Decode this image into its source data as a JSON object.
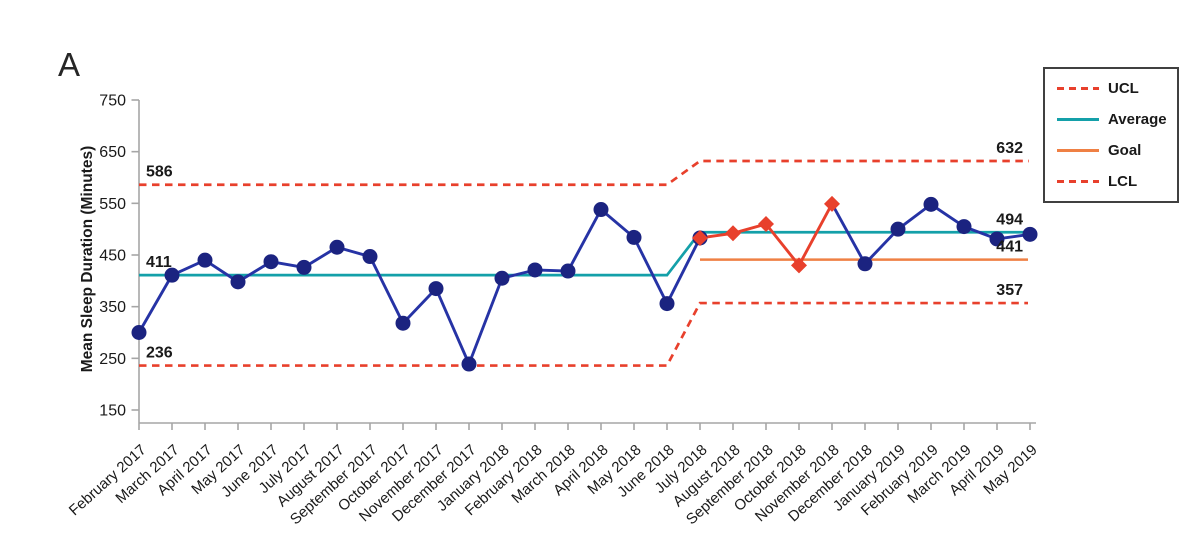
{
  "panel_label": "A",
  "legend": {
    "items": [
      {
        "label": "UCL",
        "style": "dashed",
        "color": "#e8402c"
      },
      {
        "label": "Average",
        "style": "solid",
        "color": "#14a0a9"
      },
      {
        "label": "Goal",
        "style": "solid",
        "color": "#ef8044"
      },
      {
        "label": "LCL",
        "style": "dashed",
        "color": "#e8402c"
      }
    ]
  },
  "colors": {
    "series_line": "#2633a5",
    "marker": "#1b2380",
    "special_cause": "#e8402c",
    "control_limit": "#e8402c",
    "average": "#14a0a9",
    "goal": "#ef8044",
    "axis": "#a6a6a6",
    "text": "#1a1a1a"
  },
  "chart_data": {
    "type": "line",
    "title": "",
    "xlabel": "",
    "ylabel": "Mean Sleep Duration (Minutes)",
    "ylim": [
      150,
      750
    ],
    "yticks": [
      150,
      250,
      350,
      450,
      550,
      650,
      750
    ],
    "grid": false,
    "legend_position": "outside-top-right",
    "x": [
      "February 2017",
      "March 2017",
      "April 2017",
      "May 2017",
      "June 2017",
      "July 2017",
      "August 2017",
      "September 2017",
      "October 2017",
      "November 2017",
      "December 2017",
      "January 2018",
      "February 2018",
      "March 2018",
      "April 2018",
      "May 2018",
      "June 2018",
      "July 2018",
      "August 2018",
      "September 2018",
      "October 2018",
      "November 2018",
      "December 2018",
      "January 2019",
      "February 2019",
      "March 2019",
      "April 2019",
      "May 2019"
    ],
    "series": [
      {
        "name": "Mean sleep duration",
        "marker": "circle",
        "values": [
          300,
          411,
          440,
          398,
          437,
          426,
          465,
          447,
          318,
          385,
          239,
          405,
          421,
          419,
          538,
          484,
          356,
          483,
          492,
          510,
          430,
          549,
          433,
          500,
          548,
          505,
          481,
          490
        ]
      }
    ],
    "special_cause_segment": {
      "note": "red line with diamond markers",
      "start_index": 17,
      "end_index": 21,
      "months": [
        "July 2018",
        "August 2018",
        "September 2018",
        "October 2018",
        "November 2018"
      ]
    },
    "control_limits": {
      "period1": {
        "from": "February 2017",
        "to": "June 2018",
        "ucl": 586,
        "average": 411,
        "lcl": 236
      },
      "period2": {
        "from": "July 2018",
        "to": "May 2019",
        "ucl": 632,
        "average": 494,
        "lcl": 357,
        "goal": 441
      },
      "transition_indices": [
        16,
        17
      ]
    },
    "annotations": [
      {
        "text": "586",
        "value": 586,
        "side": "left"
      },
      {
        "text": "411",
        "value": 411,
        "side": "left"
      },
      {
        "text": "236",
        "value": 236,
        "side": "left"
      },
      {
        "text": "632",
        "value": 632,
        "side": "right"
      },
      {
        "text": "494",
        "value": 494,
        "side": "right"
      },
      {
        "text": "441",
        "value": 441,
        "side": "right"
      },
      {
        "text": "357",
        "value": 357,
        "side": "right"
      }
    ]
  }
}
